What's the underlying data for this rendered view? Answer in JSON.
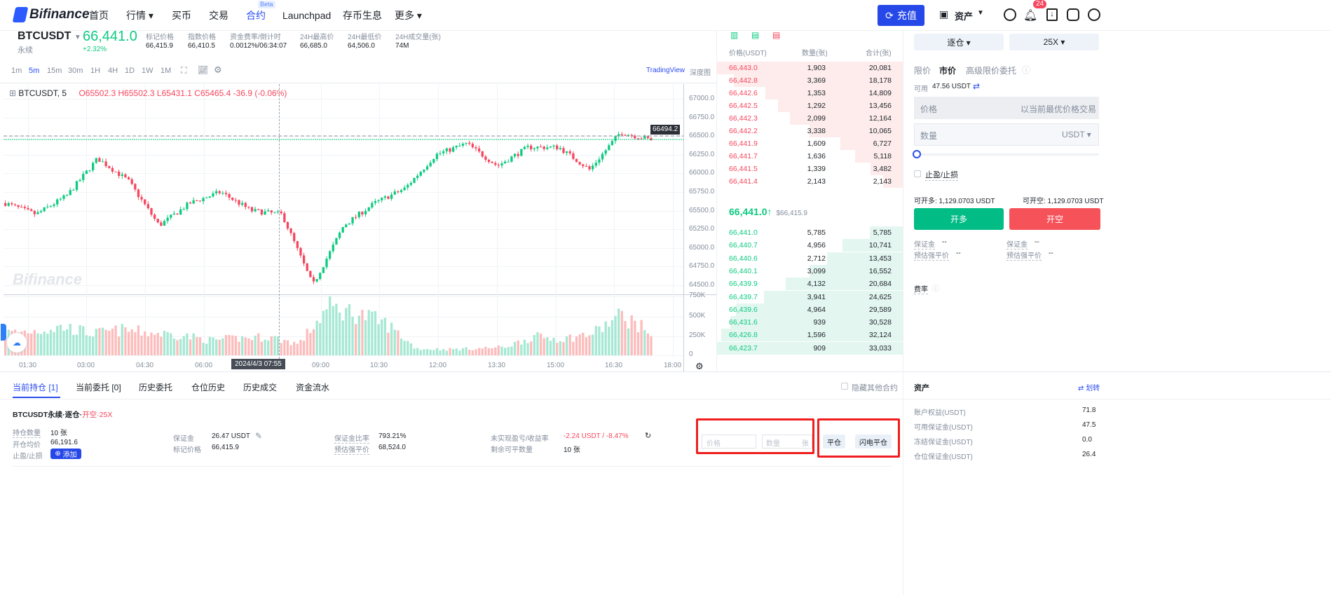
{
  "header": {
    "brand": "Bifinance",
    "nav": [
      {
        "label": "首页"
      },
      {
        "label": "行情 ▾"
      },
      {
        "label": "买币"
      },
      {
        "label": "交易"
      },
      {
        "label": "合约",
        "badge": "Beta"
      },
      {
        "label": "Launchpad"
      },
      {
        "label": "存币生息"
      },
      {
        "label": "更多 ▾"
      }
    ],
    "deposit": "充值",
    "assets": "资产",
    "notif_count": "24"
  },
  "ticker": {
    "symbol": "BTCUSDT",
    "type": "永续",
    "price": "66,441.0",
    "change": "+2.32%",
    "stats": [
      {
        "label": "标记价格",
        "value": "66,415.9"
      },
      {
        "label": "指数价格",
        "value": "66,410.5"
      },
      {
        "label": "资金费率/倒计时",
        "value": "0.0012%/06:34:07"
      },
      {
        "label": "24H最高价",
        "value": "66,685.0"
      },
      {
        "label": "24H最低价",
        "value": "64,506.0"
      },
      {
        "label": "24H成交量(张)",
        "value": "74M"
      }
    ]
  },
  "chart_toolbar": {
    "intervals": [
      "1m",
      "5m",
      "15m",
      "30m",
      "1H",
      "4H",
      "1D",
      "1W",
      "1M"
    ],
    "active": "5m",
    "tradingview": "TradingView",
    "depth": "深度图"
  },
  "chart_data": {
    "type": "candlestick",
    "symbol_label": "BTCUSDT, 5",
    "ohlc": {
      "o": "O65502.3",
      "h": "H65502.3",
      "l": "L65431.1",
      "c": "C65465.4",
      "chg": "-36.9 (-0.06%)"
    },
    "last_price_label": "66494.2",
    "watermark": "Bifinance",
    "y_ticks": [
      "67000.0",
      "66750.0",
      "66500.0",
      "66250.0",
      "66000.0",
      "65750.0",
      "65500.0",
      "65250.0",
      "65000.0",
      "64750.0",
      "64500.0"
    ],
    "ylim": [
      64500,
      67000
    ],
    "vol_ticks": [
      "750K",
      "500K",
      "250K",
      "0"
    ],
    "x_ticks": [
      "01:30",
      "03:00",
      "04:30",
      "06:00",
      "09:00",
      "10:30",
      "12:00",
      "13:30",
      "15:00",
      "16:30",
      "18:00"
    ],
    "crosshair_label": "2024/4/3   07:55",
    "price_path": [
      65600,
      65450,
      65700,
      66200,
      65900,
      65300,
      65600,
      65750,
      65500,
      65450,
      64500,
      65300,
      65600,
      65800,
      66250,
      66400,
      66100,
      66350,
      66350,
      66050,
      66550,
      66450
    ],
    "volume_path": [
      300,
      330,
      380,
      290,
      340,
      300,
      270,
      200,
      230,
      250,
      150,
      640,
      560,
      420,
      90,
      80,
      90,
      110,
      250,
      220,
      290,
      540,
      300
    ]
  },
  "orderbook": {
    "headers": [
      "价格(USDT)",
      "数量(张)",
      "合计(张)"
    ],
    "asks": [
      [
        "66,443.0",
        "1,903",
        "20,081"
      ],
      [
        "66,442.8",
        "3,369",
        "18,178"
      ],
      [
        "66,442.6",
        "1,353",
        "14,809"
      ],
      [
        "66,442.5",
        "1,292",
        "13,456"
      ],
      [
        "66,442.3",
        "2,099",
        "12,164"
      ],
      [
        "66,442.2",
        "3,338",
        "10,065"
      ],
      [
        "66,441.9",
        "1,609",
        "6,727"
      ],
      [
        "66,441.7",
        "1,636",
        "5,118"
      ],
      [
        "66,441.5",
        "1,339",
        "3,482"
      ],
      [
        "66,441.4",
        "2,143",
        "2,143"
      ]
    ],
    "mid_price": "66,441.0↑",
    "mid_mark": "$66,415.9",
    "bids": [
      [
        "66,441.0",
        "5,785",
        "5,785"
      ],
      [
        "66,440.7",
        "4,956",
        "10,741"
      ],
      [
        "66,440.6",
        "2,712",
        "13,453"
      ],
      [
        "66,440.1",
        "3,099",
        "16,552"
      ],
      [
        "66,439.9",
        "4,132",
        "20,684"
      ],
      [
        "66,439.7",
        "3,941",
        "24,625"
      ],
      [
        "66,439.6",
        "4,964",
        "29,589"
      ],
      [
        "66,431.6",
        "939",
        "30,528"
      ],
      [
        "66,426.8",
        "1,596",
        "32,124"
      ],
      [
        "66,423.7",
        "909",
        "33,033"
      ]
    ],
    "colors": {
      "ask": "#f6465d",
      "bid": "#0ecb81"
    }
  },
  "order_panel": {
    "margin_mode": "逐仓 ▾",
    "leverage": "25X ▾",
    "types": [
      "限价",
      "市价",
      "高级限价委托"
    ],
    "available_label": "可用",
    "available": "47.56 USDT",
    "price_label": "价格",
    "price_placeholder": "以当前最优价格交易",
    "qty_label": "数量",
    "qty_unit": "USDT ▾",
    "tpsl": "止盈/止损",
    "can_long": "可开多: 1,129.0703 USDT",
    "can_short": "可开空: 1,129.0703 USDT",
    "long": "开多",
    "short": "开空",
    "margin": "保证金",
    "margin_val": "--",
    "liq": "预估强平价",
    "liq_val": "--",
    "fee": "费率"
  },
  "bottom": {
    "tabs": [
      "当前持仓 [1]",
      "当前委托 [0]",
      "历史委托",
      "仓位历史",
      "历史成交",
      "资金流水"
    ],
    "hide_other": "隐藏其他合约",
    "position": {
      "title": "BTCUSDT永续·逐仓·",
      "side": "开空·25X",
      "fields": [
        {
          "label": "持仓数量",
          "value": "10 张"
        },
        {
          "label": "开仓均价",
          "value": "66,191.6"
        },
        {
          "label": "止盈/止损",
          "value": "添加"
        },
        {
          "label": "保证金",
          "value": "26.47 USDT"
        },
        {
          "label": "标记价格",
          "value": "66,415.9"
        },
        {
          "label": "保证金比率",
          "value": "793.21%"
        },
        {
          "label": "预估强平价",
          "value": "68,524.0"
        },
        {
          "label": "未实现盈亏/收益率",
          "value": "-2.24 USDT / -8.47%"
        },
        {
          "label": "剩余可平数量",
          "value": "10 张"
        }
      ],
      "price_ph": "价格",
      "qty_ph": "数量",
      "qty_unit": "张",
      "close": "平仓",
      "flash_close": "闪电平仓"
    }
  },
  "assets": {
    "title": "资产",
    "transfer": "划转",
    "rows": [
      {
        "label": "账户权益(USDT)",
        "value": "71.8"
      },
      {
        "label": "可用保证金(USDT)",
        "value": "47.5"
      },
      {
        "label": "冻结保证金(USDT)",
        "value": "0.0"
      },
      {
        "label": "仓位保证金(USDT)",
        "value": "26.4"
      }
    ]
  }
}
